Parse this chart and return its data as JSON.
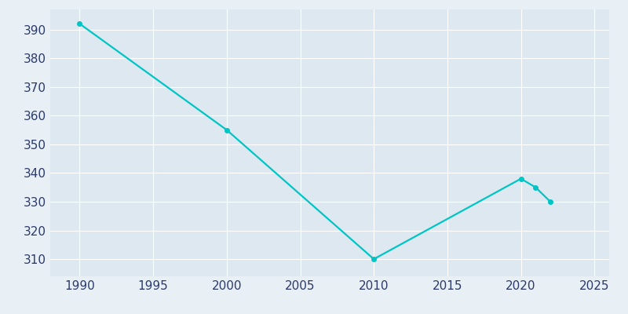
{
  "years": [
    1990,
    2000,
    2010,
    2020,
    2021,
    2022
  ],
  "population": [
    392,
    355,
    310,
    338,
    335,
    330
  ],
  "line_color": "#00C5C5",
  "marker_color": "#00C5C5",
  "fig_bg_color": "#E8EFF5",
  "plot_bg_color": "#DDE8F0",
  "grid_color": "#FFFFFF",
  "tick_label_color": "#2B3A6B",
  "xlim": [
    1988,
    2026
  ],
  "ylim": [
    304,
    397
  ],
  "xticks": [
    1990,
    1995,
    2000,
    2005,
    2010,
    2015,
    2020,
    2025
  ],
  "yticks": [
    310,
    320,
    330,
    340,
    350,
    360,
    370,
    380,
    390
  ],
  "linewidth": 1.6,
  "markersize": 4,
  "tick_fontsize": 11
}
